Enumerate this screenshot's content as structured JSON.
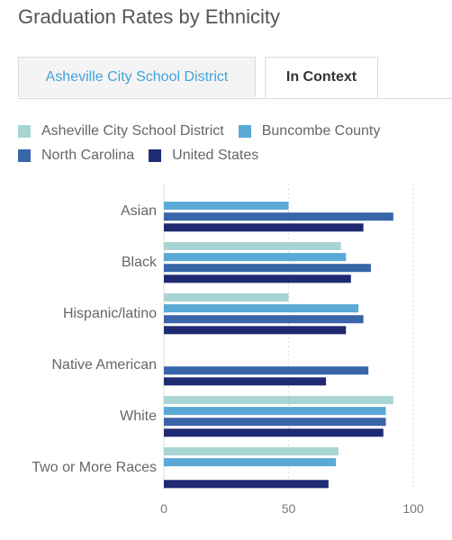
{
  "title": "Graduation Rates by Ethnicity",
  "tabs": [
    {
      "label": "Asheville City School District",
      "active": false
    },
    {
      "label": "In Context",
      "active": true
    }
  ],
  "chart_data": {
    "type": "bar",
    "orientation": "horizontal",
    "title": "",
    "xlabel": "",
    "ylabel": "",
    "xlim": [
      0,
      100
    ],
    "ticks": [
      0,
      50,
      100
    ],
    "grid": "vertical-dotted",
    "legend_position": "top",
    "categories": [
      "Asian",
      "Black",
      "Hispanic/latino",
      "Native American",
      "White",
      "Two or More Races"
    ],
    "series": [
      {
        "name": "Asheville City School District",
        "color": "#a8d5d3",
        "values": [
          null,
          71,
          50,
          null,
          92,
          70
        ]
      },
      {
        "name": "Buncombe County",
        "color": "#5aa9d6",
        "values": [
          50,
          73,
          78,
          null,
          89,
          69
        ]
      },
      {
        "name": "North Carolina",
        "color": "#3866a8",
        "values": [
          92,
          83,
          80,
          82,
          89,
          null
        ]
      },
      {
        "name": "United States",
        "color": "#1e2a72",
        "values": [
          80,
          75,
          73,
          65,
          88,
          66
        ]
      }
    ]
  }
}
